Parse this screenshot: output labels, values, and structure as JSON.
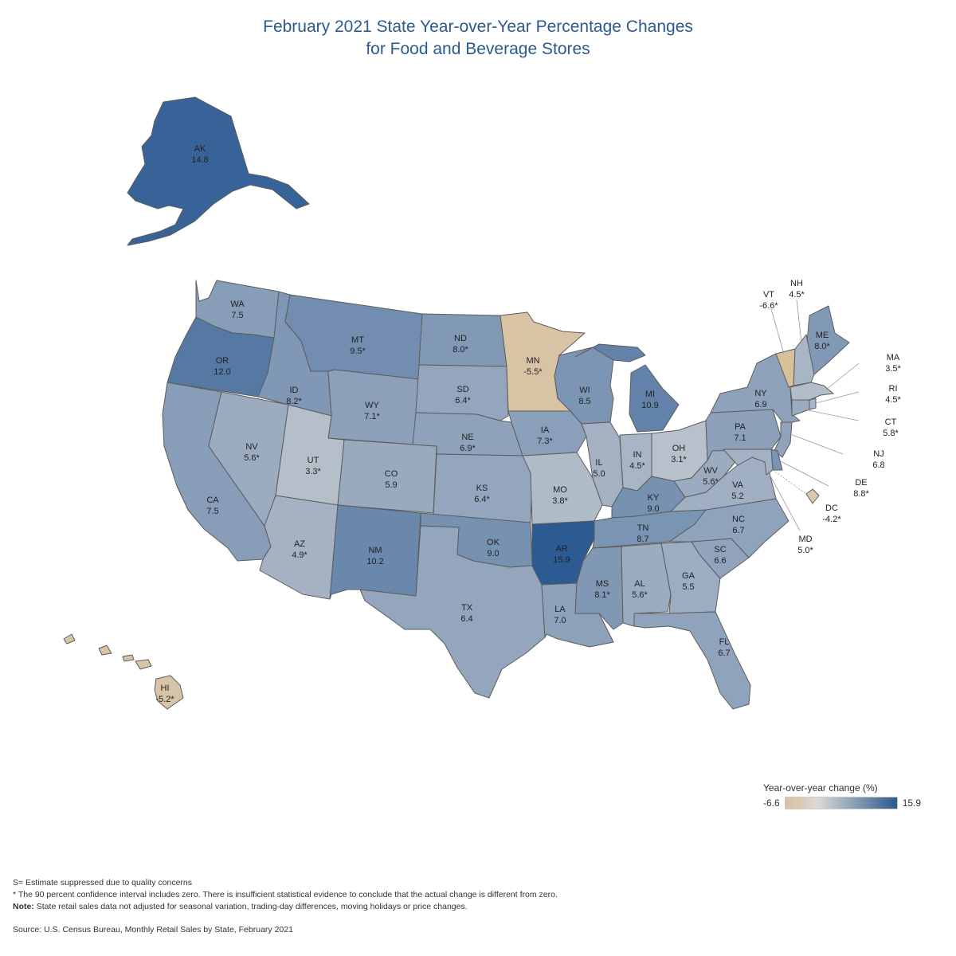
{
  "title": {
    "line1": "February 2021 State Year-over-Year Percentage Changes",
    "line2": "for Food and Beverage Stores"
  },
  "legend": {
    "title": "Year-over-year change (%)",
    "min": -6.6,
    "max": 15.9,
    "min_label": "-6.6",
    "max_label": "15.9",
    "color_low": "#d8c09a",
    "color_mid": "#d9d9d9",
    "color_high": "#2c5a93"
  },
  "states": [
    {
      "abbr": "AK",
      "value": "14.8",
      "v": 14.8
    },
    {
      "abbr": "WA",
      "value": "7.5",
      "v": 7.5
    },
    {
      "abbr": "OR",
      "value": "12.0",
      "v": 12.0
    },
    {
      "abbr": "CA",
      "value": "7.5",
      "v": 7.5
    },
    {
      "abbr": "NV",
      "value": "5.6*",
      "v": 5.6
    },
    {
      "abbr": "ID",
      "value": "8.2*",
      "v": 8.2
    },
    {
      "abbr": "MT",
      "value": "9.5*",
      "v": 9.5
    },
    {
      "abbr": "WY",
      "value": "7.1*",
      "v": 7.1
    },
    {
      "abbr": "UT",
      "value": "3.3*",
      "v": 3.3
    },
    {
      "abbr": "AZ",
      "value": "4.9*",
      "v": 4.9
    },
    {
      "abbr": "CO",
      "value": "5.9",
      "v": 5.9
    },
    {
      "abbr": "NM",
      "value": "10.2",
      "v": 10.2
    },
    {
      "abbr": "ND",
      "value": "8.0*",
      "v": 8.0
    },
    {
      "abbr": "SD",
      "value": "6.4*",
      "v": 6.4
    },
    {
      "abbr": "NE",
      "value": "6.9*",
      "v": 6.9
    },
    {
      "abbr": "KS",
      "value": "6.4*",
      "v": 6.4
    },
    {
      "abbr": "OK",
      "value": "9.0",
      "v": 9.0
    },
    {
      "abbr": "TX",
      "value": "6.4",
      "v": 6.4
    },
    {
      "abbr": "MN",
      "value": "-5.5*",
      "v": -5.5
    },
    {
      "abbr": "IA",
      "value": "7.3*",
      "v": 7.3
    },
    {
      "abbr": "MO",
      "value": "3.8*",
      "v": 3.8
    },
    {
      "abbr": "AR",
      "value": "15.9",
      "v": 15.9
    },
    {
      "abbr": "LA",
      "value": "7.0",
      "v": 7.0
    },
    {
      "abbr": "WI",
      "value": "8.5",
      "v": 8.5
    },
    {
      "abbr": "IL",
      "value": "5.0",
      "v": 5.0
    },
    {
      "abbr": "MI",
      "value": "10.9",
      "v": 10.9
    },
    {
      "abbr": "IN",
      "value": "4.5*",
      "v": 4.5
    },
    {
      "abbr": "OH",
      "value": "3.1*",
      "v": 3.1
    },
    {
      "abbr": "KY",
      "value": "9.0",
      "v": 9.0
    },
    {
      "abbr": "TN",
      "value": "8.7",
      "v": 8.7
    },
    {
      "abbr": "MS",
      "value": "8.1*",
      "v": 8.1
    },
    {
      "abbr": "AL",
      "value": "5.6*",
      "v": 5.6
    },
    {
      "abbr": "GA",
      "value": "5.5",
      "v": 5.5
    },
    {
      "abbr": "FL",
      "value": "6.7",
      "v": 6.7
    },
    {
      "abbr": "SC",
      "value": "6.6",
      "v": 6.6
    },
    {
      "abbr": "NC",
      "value": "6.7",
      "v": 6.7
    },
    {
      "abbr": "VA",
      "value": "5.2",
      "v": 5.2
    },
    {
      "abbr": "WV",
      "value": "5.6*",
      "v": 5.6
    },
    {
      "abbr": "PA",
      "value": "7.1",
      "v": 7.1
    },
    {
      "abbr": "NY",
      "value": "6.9",
      "v": 6.9
    },
    {
      "abbr": "ME",
      "value": "8.0*",
      "v": 8.0
    },
    {
      "abbr": "VT",
      "value": "-6.6*",
      "v": -6.6
    },
    {
      "abbr": "NH",
      "value": "4.5*",
      "v": 4.5
    },
    {
      "abbr": "MA",
      "value": "3.5*",
      "v": 3.5
    },
    {
      "abbr": "RI",
      "value": "4.5*",
      "v": 4.5
    },
    {
      "abbr": "CT",
      "value": "5.8*",
      "v": 5.8
    },
    {
      "abbr": "NJ",
      "value": "6.8",
      "v": 6.8
    },
    {
      "abbr": "DE",
      "value": "8.8*",
      "v": 8.8
    },
    {
      "abbr": "MD",
      "value": "5.0*",
      "v": 5.0
    },
    {
      "abbr": "DC",
      "value": "-4.2*",
      "v": -4.2
    },
    {
      "abbr": "HI",
      "value": "-5.2*",
      "v": -5.2
    }
  ],
  "notes": {
    "line1": "S= Estimate suppressed due to quality concerns",
    "line2": "* The 90 percent confidence interval includes zero. There is insufficient statistical evidence to conclude that the actual change is different from zero.",
    "note_label": "Note:",
    "line3": " State retail sales data not adjusted for seasonal variation, trading-day differences, moving holidays or price changes."
  },
  "source": "Source: U.S. Census Bureau, Monthly Retail Sales by State, February 2021"
}
